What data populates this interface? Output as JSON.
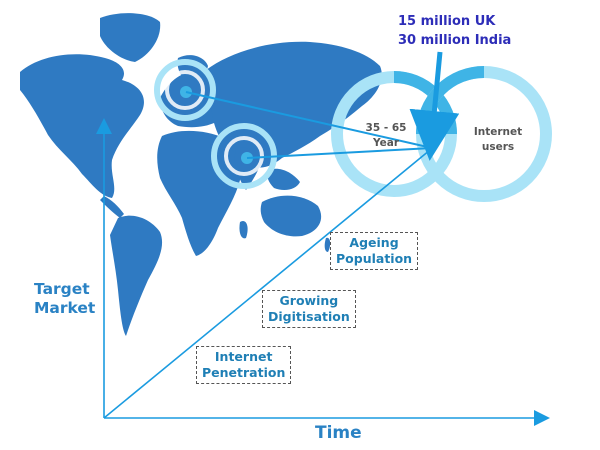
{
  "callout": {
    "line1": "15 million UK",
    "line2": "30 million India"
  },
  "venn": {
    "left_label_line1": "35 - 65",
    "left_label_line2": "Year",
    "right_label_line1": "Internet",
    "right_label_line2": "users"
  },
  "axes": {
    "y_line1": "Target",
    "y_line2": "Market",
    "x": "Time"
  },
  "drivers": [
    {
      "line1": "Ageing",
      "line2": "Population"
    },
    {
      "line1": "Growing",
      "line2": "Digitisation"
    },
    {
      "line1": "Internet",
      "line2": "Penetration"
    }
  ],
  "colors": {
    "map": "#2f7ac2",
    "ring_light": "#a9e3f7",
    "ring_mid": "#3fb4e6",
    "arrow": "#1a9be0",
    "axis": "#2a82c4",
    "stats": "#2d2db8"
  }
}
